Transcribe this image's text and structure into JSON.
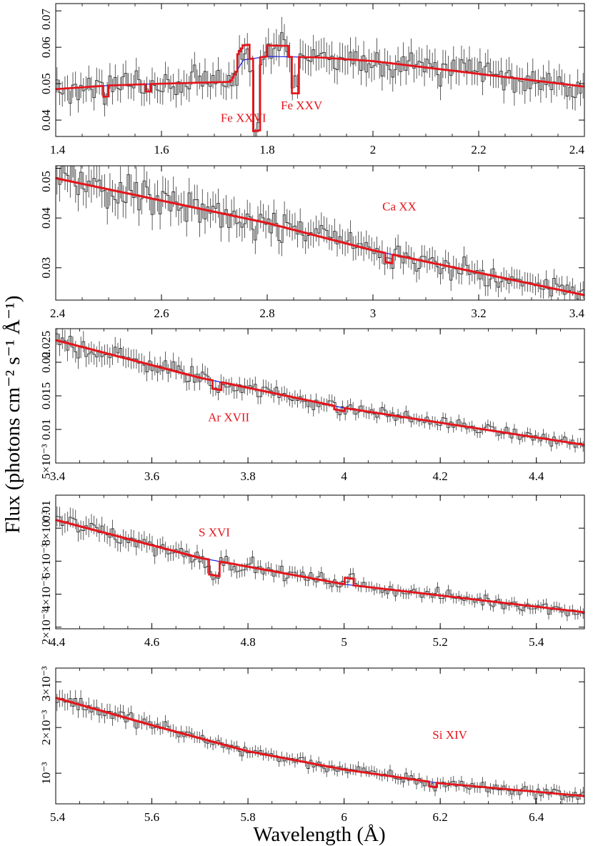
{
  "figure": {
    "ylabel": "Flux (photons cm⁻² s⁻¹ Å⁻¹)",
    "xlabel": "Wavelength (Å)"
  },
  "colors": {
    "data": "#333333",
    "model": "#e4141b",
    "continuum": "#1a1adf",
    "label": "#e4141b"
  },
  "chart_data": [
    {
      "type": "line",
      "xlim": [
        1.4,
        2.4
      ],
      "ylim": [
        0.0355,
        0.072
      ],
      "xticks": [
        1.4,
        1.6,
        1.8,
        2.0,
        2.2,
        2.4
      ],
      "xtick_labels": [
        "1.4",
        "1.6",
        "1.8",
        "2",
        "2.2",
        "2.4"
      ],
      "yticks": [
        0.04,
        0.05,
        0.06,
        0.07
      ],
      "ytick_labels": [
        "0.04",
        "0.05",
        "0.06",
        "0.07"
      ],
      "continuum": {
        "x": [
          1.4,
          1.5,
          1.6,
          1.73,
          1.755,
          1.8,
          1.9,
          2.0,
          2.2,
          2.4
        ],
        "y": [
          0.0485,
          0.0495,
          0.05,
          0.0505,
          0.0565,
          0.0575,
          0.0572,
          0.0562,
          0.0527,
          0.0492
        ]
      },
      "lines": [
        {
          "center": 1.495,
          "depth": 0.003,
          "width": 0.006
        },
        {
          "center": 1.575,
          "depth": 0.002,
          "width": 0.006
        },
        {
          "center": 1.78,
          "depth": 0.02,
          "width": 0.007
        },
        {
          "center": 1.852,
          "depth": 0.01,
          "width": 0.007
        }
      ],
      "emissions": [
        {
          "center": 1.755,
          "height": 0.004,
          "width": 0.012
        },
        {
          "center": 1.82,
          "height": 0.003,
          "width": 0.02
        }
      ],
      "annotations": [
        {
          "text": "Fe XXVI",
          "x": 1.755,
          "y": 0.0395
        },
        {
          "text": "Fe XXV",
          "x": 1.865,
          "y": 0.043
        }
      ]
    },
    {
      "type": "line",
      "xlim": [
        2.4,
        3.4
      ],
      "ylim": [
        0.0235,
        0.0505
      ],
      "xticks": [
        2.4,
        2.6,
        2.8,
        3.0,
        3.2,
        3.4
      ],
      "xtick_labels": [
        "2.4",
        "2.6",
        "2.8",
        "3",
        "3.2",
        "3.4"
      ],
      "yticks": [
        0.03,
        0.04,
        0.05
      ],
      "ytick_labels": [
        "0.03",
        "0.04",
        "0.05"
      ],
      "continuum": {
        "x": [
          2.4,
          2.8,
          3.0,
          3.4
        ],
        "y": [
          0.048,
          0.039,
          0.0335,
          0.0245
        ]
      },
      "lines": [
        {
          "center": 3.03,
          "depth": 0.0018,
          "width": 0.008
        }
      ],
      "emissions": [],
      "annotations": [
        {
          "text": "Ca XX",
          "x": 3.05,
          "y": 0.0415
        }
      ]
    },
    {
      "type": "line",
      "xlim": [
        3.4,
        4.5
      ],
      "ylim": [
        0.005,
        0.025
      ],
      "xticks": [
        3.4,
        3.6,
        3.8,
        4.0,
        4.2,
        4.4
      ],
      "xtick_labels": [
        "3.4",
        "3.6",
        "3.8",
        "4",
        "4.2",
        "4.4"
      ],
      "yticks": [
        0.005,
        0.01,
        0.015,
        0.02,
        0.025
      ],
      "ytick_labels": [
        "5×10⁻³",
        "0.01",
        "0.015",
        "0.02",
        "0.025"
      ],
      "continuum": {
        "x": [
          3.4,
          3.7,
          4.0,
          4.5
        ],
        "y": [
          0.0233,
          0.0177,
          0.0132,
          0.0077
        ]
      },
      "lines": [
        {
          "center": 3.735,
          "depth": 0.0012,
          "width": 0.008
        },
        {
          "center": 3.99,
          "depth": 0.0005,
          "width": 0.01
        }
      ],
      "emissions": [],
      "annotations": [
        {
          "text": "Ar XVII",
          "x": 3.76,
          "y": 0.0112
        }
      ]
    },
    {
      "type": "line",
      "xlim": [
        4.4,
        5.5
      ],
      "ylim": [
        0.0019,
        0.01
      ],
      "xticks": [
        4.4,
        4.6,
        4.8,
        5.0,
        5.2,
        5.4
      ],
      "xtick_labels": [
        "4.4",
        "4.6",
        "4.8",
        "5",
        "5.2",
        "5.4"
      ],
      "yticks": [
        0.002,
        0.004,
        0.006,
        0.008,
        0.01
      ],
      "ytick_labels": [
        "2×10⁻³",
        "4×10⁻³",
        "6×10⁻³",
        "8×10⁻³",
        "0.01"
      ],
      "continuum": {
        "x": [
          4.4,
          4.7,
          5.0,
          5.5
        ],
        "y": [
          0.0085,
          0.0062,
          0.0046,
          0.0029
        ]
      },
      "lines": [
        {
          "center": 4.73,
          "depth": 0.0009,
          "width": 0.01
        }
      ],
      "emissions": [
        {
          "center": 5.01,
          "height": 0.0004,
          "width": 0.01
        }
      ],
      "annotations": [
        {
          "text": "S XVI",
          "x": 4.73,
          "y": 0.0075
        }
      ]
    },
    {
      "type": "line",
      "xlim": [
        5.4,
        6.5
      ],
      "ylim": [
        0.00033,
        0.0033
      ],
      "xticks": [
        5.4,
        5.6,
        5.8,
        6.0,
        6.2,
        6.4
      ],
      "xtick_labels": [
        "5.4",
        "5.6",
        "5.8",
        "6",
        "6.2",
        "6.4"
      ],
      "yticks": [
        0.001,
        0.002,
        0.003
      ],
      "ytick_labels": [
        "10⁻³",
        "2×10⁻³",
        "3×10⁻³"
      ],
      "continuum": {
        "x": [
          5.4,
          5.6,
          5.8,
          6.0,
          6.2,
          6.5
        ],
        "y": [
          0.00265,
          0.00205,
          0.00148,
          0.00108,
          0.00078,
          0.0005
        ]
      },
      "lines": [
        {
          "center": 6.185,
          "depth": 0.0001,
          "width": 0.008
        }
      ],
      "emissions": [],
      "annotations": [
        {
          "text": "Si XIV",
          "x": 6.22,
          "y": 0.00175
        }
      ]
    }
  ]
}
